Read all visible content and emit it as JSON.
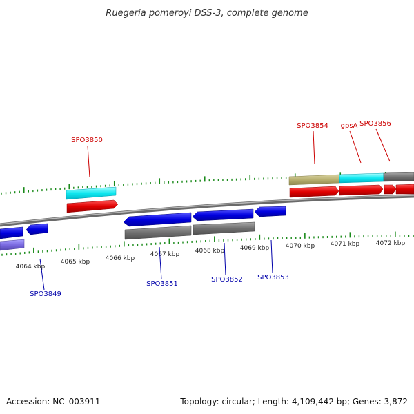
{
  "title": "Ruegeria pomeroyi DSS-3, complete genome",
  "footer": {
    "accession": "Accession: NC_003911",
    "summary": "Topology: circular; Length: 4,109,442 bp; Genes: 3,872"
  },
  "colors": {
    "forward_label": "#cc0000",
    "reverse_label": "#0000aa",
    "tick": "#1a8a1a",
    "backbone": "#8a8a8a"
  },
  "ticks": [
    {
      "label": "4064 kbp"
    },
    {
      "label": "4065 kbp"
    },
    {
      "label": "4066 kbp"
    },
    {
      "label": "4067 kbp"
    },
    {
      "label": "4068 kbp"
    },
    {
      "label": "4069 kbp"
    },
    {
      "label": "4070 kbp"
    },
    {
      "label": "4071 kbp"
    },
    {
      "label": "4072 kbp"
    }
  ],
  "gene_labels": [
    {
      "name": "SPO3850",
      "strand": "forward"
    },
    {
      "name": "SPO3854",
      "strand": "forward"
    },
    {
      "name": "gpsA",
      "strand": "forward"
    },
    {
      "name": "SPO3856",
      "strand": "forward"
    },
    {
      "name": "SPO3849",
      "strand": "reverse"
    },
    {
      "name": "SPO3851",
      "strand": "reverse"
    },
    {
      "name": "SPO3852",
      "strand": "reverse"
    },
    {
      "name": "SPO3853",
      "strand": "reverse"
    }
  ]
}
